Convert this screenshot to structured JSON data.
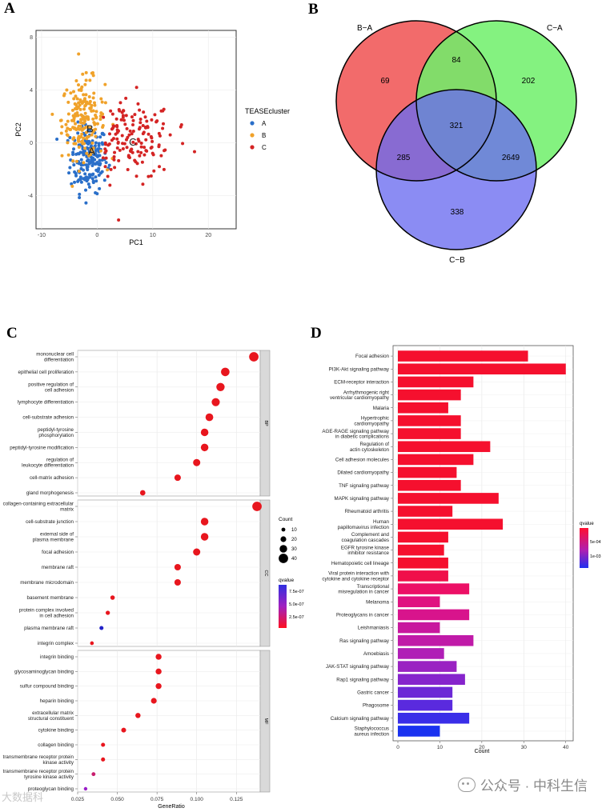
{
  "panels": {
    "a": "A",
    "b": "B",
    "c": "C",
    "d": "D"
  },
  "watermark": {
    "text": "公众号 · 中科生信",
    "left_text": "大数据科"
  },
  "chart_data": [
    {
      "id": "pca",
      "type": "scatter",
      "xlabel": "PC1",
      "ylabel": "PC2",
      "xlim": [
        -11,
        25
      ],
      "ylim": [
        -6.5,
        8.5
      ],
      "xticks": [
        -10,
        0,
        10,
        20
      ],
      "yticks": [
        -4,
        0,
        4,
        8
      ],
      "legend_title": "TEASEcluster",
      "cluster_labels": [
        {
          "text": "A",
          "x": -1,
          "y": -0.9
        },
        {
          "text": "B",
          "x": -1.3,
          "y": 0.8
        },
        {
          "text": "C",
          "x": 6.4,
          "y": -0.2
        }
      ],
      "series": [
        {
          "name": "A",
          "color": "#2a6fc9",
          "center": [
            -1.5,
            -1.2
          ],
          "spread": [
            3,
            1.7
          ],
          "n": 190
        },
        {
          "name": "B",
          "color": "#f0a22a",
          "center": [
            -2.5,
            1.8
          ],
          "spread": [
            3.5,
            2
          ],
          "n": 190
        },
        {
          "name": "C",
          "color": "#d42424",
          "center": [
            6,
            0.2
          ],
          "spread": [
            5,
            2
          ],
          "n": 150
        }
      ]
    },
    {
      "id": "venn",
      "type": "venn",
      "sets": [
        {
          "name": "B−A",
          "color": "#f26b6b"
        },
        {
          "name": "C−A",
          "color": "#6ef06a"
        },
        {
          "name": "C−B",
          "color": "#6a6cf0"
        }
      ],
      "regions": [
        {
          "label": "B−A only",
          "value": 69
        },
        {
          "label": "B−A & C−A",
          "value": 84
        },
        {
          "label": "C−A only",
          "value": 202
        },
        {
          "label": "all three",
          "value": 321
        },
        {
          "label": "B−A & C−B",
          "value": 285
        },
        {
          "label": "C−A & C−B",
          "value": 2649
        },
        {
          "label": "C−B only",
          "value": 338
        }
      ]
    },
    {
      "id": "go_dotplot",
      "type": "scatter",
      "xlabel": "GeneRatio",
      "xlim": [
        0.025,
        0.14
      ],
      "xticks": [
        "0.025",
        "0.050",
        "0.075",
        "0.100",
        "0.125"
      ],
      "size_legend_title": "Count",
      "size_legend": [
        10,
        20,
        30,
        40
      ],
      "color_legend_title": "qvalue",
      "color_legend_ticks": [
        "7.5e-07",
        "5.0e-07",
        "2.5e-07"
      ],
      "facets": [
        {
          "name": "BP",
          "terms": [
            {
              "term": "mononuclear cell differentiation",
              "ratio": 0.136,
              "count": 40,
              "color": "#e8161e"
            },
            {
              "term": "epithelial cell proliferation",
              "ratio": 0.118,
              "count": 35,
              "color": "#e8161e"
            },
            {
              "term": "positive regulation of cell adhesion",
              "ratio": 0.115,
              "count": 34,
              "color": "#e8161e"
            },
            {
              "term": "lymphocyte differentiation",
              "ratio": 0.112,
              "count": 33,
              "color": "#e8161e"
            },
            {
              "term": "cell-substrate adhesion",
              "ratio": 0.108,
              "count": 31,
              "color": "#e8161e"
            },
            {
              "term": "peptidyl-tyrosine phosphorylation",
              "ratio": 0.105,
              "count": 30,
              "color": "#e8161e"
            },
            {
              "term": "peptidyl-tyrosine modification",
              "ratio": 0.105,
              "count": 30,
              "color": "#e8161e"
            },
            {
              "term": "regulation of leukocyte differentiation",
              "ratio": 0.1,
              "count": 28,
              "color": "#e8161e"
            },
            {
              "term": "cell-matrix adhesion",
              "ratio": 0.088,
              "count": 24,
              "color": "#e8161e"
            },
            {
              "term": "gland morphogenesis",
              "ratio": 0.066,
              "count": 18,
              "color": "#e8161e"
            }
          ]
        },
        {
          "name": "CC",
          "terms": [
            {
              "term": "collagen-containing extracellular matrix",
              "ratio": 0.138,
              "count": 40,
              "color": "#e8161e"
            },
            {
              "term": "cell-substrate junction",
              "ratio": 0.105,
              "count": 30,
              "color": "#e8161e"
            },
            {
              "term": "external side of plasma membrane",
              "ratio": 0.105,
              "count": 30,
              "color": "#e8161e"
            },
            {
              "term": "focal adhesion",
              "ratio": 0.1,
              "count": 28,
              "color": "#e8161e"
            },
            {
              "term": "membrane raft",
              "ratio": 0.088,
              "count": 24,
              "color": "#e8161e"
            },
            {
              "term": "membrane microdomain",
              "ratio": 0.088,
              "count": 24,
              "color": "#e8161e"
            },
            {
              "term": "basement membrane",
              "ratio": 0.047,
              "count": 13,
              "color": "#e8161e"
            },
            {
              "term": "protein complex involved in cell adhesion",
              "ratio": 0.044,
              "count": 12,
              "color": "#e8161e"
            },
            {
              "term": "plasma membrane raft",
              "ratio": 0.04,
              "count": 11,
              "color": "#2222c8"
            },
            {
              "term": "integrin complex",
              "ratio": 0.034,
              "count": 9,
              "color": "#e8161e"
            }
          ]
        },
        {
          "name": "MF",
          "terms": [
            {
              "term": "integrin binding",
              "ratio": 0.076,
              "count": 21,
              "color": "#e8161e"
            },
            {
              "term": "glycosaminoglycan binding",
              "ratio": 0.076,
              "count": 21,
              "color": "#e8161e"
            },
            {
              "term": "sulfur compound binding",
              "ratio": 0.076,
              "count": 21,
              "color": "#e8161e"
            },
            {
              "term": "heparin binding",
              "ratio": 0.073,
              "count": 20,
              "color": "#e8161e"
            },
            {
              "term": "extracellular matrix structural constituent",
              "ratio": 0.063,
              "count": 17,
              "color": "#e8161e"
            },
            {
              "term": "cytokine binding",
              "ratio": 0.054,
              "count": 15,
              "color": "#e8161e"
            },
            {
              "term": "collagen binding",
              "ratio": 0.041,
              "count": 11,
              "color": "#e8161e"
            },
            {
              "term": "transmembrane receptor protein kinase activity",
              "ratio": 0.041,
              "count": 11,
              "color": "#e8161e"
            },
            {
              "term": "transmembrane receptor protein tyrosine kinase activity",
              "ratio": 0.035,
              "count": 10,
              "color": "#c81e6e"
            },
            {
              "term": "proteoglycan binding",
              "ratio": 0.03,
              "count": 8,
              "color": "#9a1ec8"
            }
          ]
        }
      ]
    },
    {
      "id": "kegg_bar",
      "type": "bar",
      "orientation": "horizontal",
      "xlabel": "Count",
      "xlim": [
        0,
        41
      ],
      "xticks": [
        0,
        10,
        20,
        30,
        40
      ],
      "color_legend_title": "qvalue",
      "color_legend_ticks": [
        "5e-04",
        "1e-03"
      ],
      "categories": [
        "Focal adhesion",
        "PI3K-Akt signaling pathway",
        "ECM-receptor interaction",
        "Arrhythmogenic right ventricular cardiomyopathy",
        "Malaria",
        "Hypertrophic cardiomyopathy",
        "AGE-RAGE signaling pathway in diabetic complications",
        "Regulation of actin cytoskeleton",
        "Cell adhesion molecules",
        "Dilated cardiomyopathy",
        "TNF signaling pathway",
        "MAPK signaling pathway",
        "Rheumatoid arthritis",
        "Human papillomavirus infection",
        "Complement and coagulation cascades",
        "EGFR tyrosine kinase inhibitor resistance",
        "Hematopoietic cell lineage",
        "Viral protein interaction with cytokine and cytokine receptor",
        "Transcriptional misregulation in cancer",
        "Melanoma",
        "Proteoglycans in cancer",
        "Leishmaniasis",
        "Ras signaling pathway",
        "Amoebiasis",
        "JAK-STAT signaling pathway",
        "Rap1 signaling pathway",
        "Gastric cancer",
        "Phagosome",
        "Calcium signaling pathway",
        "Staphylococcus aureus infection"
      ],
      "values": [
        31,
        40,
        18,
        15,
        12,
        15,
        15,
        22,
        18,
        14,
        15,
        24,
        13,
        25,
        12,
        11,
        12,
        12,
        17,
        10,
        17,
        10,
        18,
        11,
        14,
        16,
        13,
        13,
        17,
        10
      ],
      "colors": [
        "#f5102e",
        "#f5102e",
        "#f5102e",
        "#f5102e",
        "#f5102e",
        "#f5102e",
        "#f5102e",
        "#f5102e",
        "#f5102e",
        "#f5102e",
        "#f5102e",
        "#f5102e",
        "#f5102e",
        "#f5102e",
        "#f5102e",
        "#f5102e",
        "#f5102e",
        "#f0104a",
        "#ec1066",
        "#e01280",
        "#d8148c",
        "#c8189e",
        "#c01aa8",
        "#b01eb6",
        "#9a22c2",
        "#8624cc",
        "#6c28d6",
        "#5a2ade",
        "#3a2ee8",
        "#1a32f0"
      ]
    }
  ]
}
